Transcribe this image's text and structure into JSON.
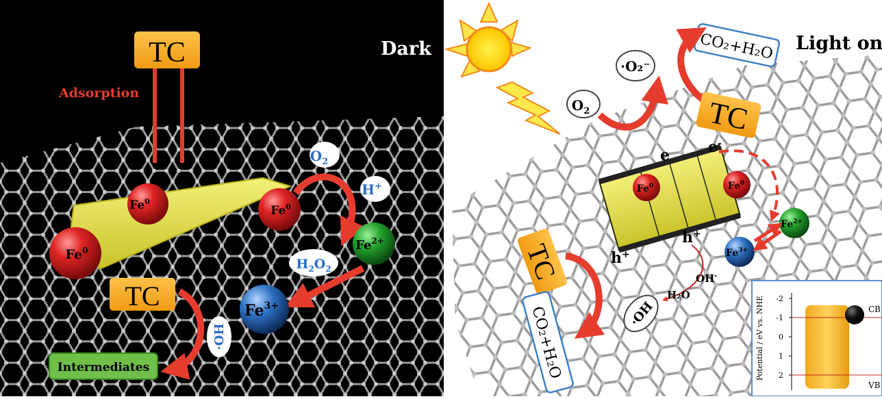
{
  "left_panel": {
    "mode_label": "Dark",
    "adsorption_label": "Adsorption",
    "tc_top": "TC",
    "tc_bottom": "TC",
    "intermediates": "Intermediates",
    "fe0_a": "Fe",
    "fe0_b": "Fe",
    "fe0_c": "Fe",
    "sup_zero": "0",
    "fe2": "Fe",
    "fe2_sup": "2+",
    "fe3": "Fe",
    "fe3_sup": "3+",
    "o2": "O",
    "o2_sub": "2",
    "hplus": "H",
    "hplus_sup": "+",
    "h2o2_a": "H",
    "h2o2_b": "2",
    "h2o2_c": "O",
    "h2o2_d": "2",
    "oh_radical": "·OH"
  },
  "right_panel": {
    "mode_label": "Light on",
    "co2_h2o_top": "CO₂+H₂O",
    "co2_h2o_left": "CO₂+H₂O",
    "superoxide": "·O₂⁻",
    "o2": "O",
    "o2_sub": "2",
    "tc_right": "TC",
    "tc_left": "TC",
    "electron_a": "e",
    "electron_b": "e",
    "electron_sup": "-",
    "hole_a": "h",
    "hole_b": "h",
    "hole_sup": "+",
    "fe0_a": "Fe",
    "fe0_b": "Fe",
    "sup_zero": "0",
    "fe2": "Fe",
    "fe2_sup": "2+",
    "fe3": "Fe",
    "fe3_sup": "3+",
    "oh_minus": "OH",
    "oh_minus_sup": "-",
    "h2o": "H₂O",
    "oh_radical": "·OH"
  },
  "inset": {
    "ylabel": "Potential / eV vs. NHE",
    "ticks": [
      "-2",
      "-1",
      "0",
      "1",
      "2"
    ],
    "cb_label": "CB",
    "vb_label": "VB"
  },
  "colors": {
    "tc_box": "#f5a623",
    "arrow_red": "#e53c2e",
    "fe0_red": "#d91f1f",
    "fe2_green": "#1f9a2a",
    "fe3_blue": "#2b6fc0",
    "sheet_yellow": "#e9e34a",
    "graphene_grey": "#8c8c8c"
  }
}
